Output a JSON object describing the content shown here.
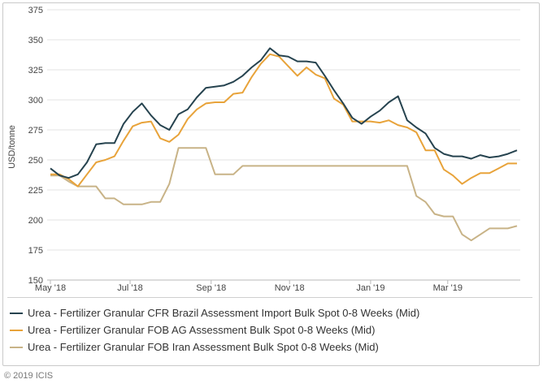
{
  "chart_data": {
    "type": "line",
    "ylabel": "USD/tonne",
    "ylim": [
      150,
      375
    ],
    "yticks": [
      150,
      175,
      200,
      225,
      250,
      275,
      300,
      325,
      350,
      375
    ],
    "xlabels": [
      {
        "label": "May '18",
        "x": 0
      },
      {
        "label": "Jul '18",
        "x": 8.71
      },
      {
        "label": "Sep '18",
        "x": 17.57
      },
      {
        "label": "Nov '18",
        "x": 26.14
      },
      {
        "label": "Jan '19",
        "x": 35
      },
      {
        "label": "Mar '19",
        "x": 43.43
      }
    ],
    "grid": "horizontal",
    "legend_position": "bottom",
    "series": [
      {
        "name": "Urea - Fertilizer Granular CFR Brazil Assessment Import Bulk Spot 0-8 Weeks (Mid)",
        "color": "#26434f",
        "values": [
          243,
          237,
          235,
          238,
          248,
          263,
          264,
          264,
          280,
          290,
          297,
          287,
          279,
          275,
          288,
          292,
          302,
          310,
          311,
          312,
          315,
          320,
          327,
          333,
          343,
          337,
          336,
          332,
          332,
          331,
          320,
          308,
          297,
          285,
          280,
          286,
          291,
          298,
          303,
          283,
          277,
          272,
          260,
          255,
          253,
          253,
          251,
          254,
          252,
          253,
          255,
          258
        ]
      },
      {
        "name": "Urea - Fertilizer Granular FOB AG Assessment Bulk Spot 0-8 Weeks (Mid)",
        "color": "#e8a33a",
        "values": [
          238,
          238,
          234,
          228,
          238,
          248,
          250,
          253,
          266,
          278,
          281,
          282,
          268,
          265,
          271,
          284,
          292,
          297,
          298,
          298,
          305,
          306,
          319,
          330,
          338,
          336,
          328,
          320,
          327,
          321,
          318,
          301,
          296,
          282,
          282,
          282,
          281,
          283,
          279,
          277,
          273,
          258,
          258,
          242,
          237,
          230,
          235,
          239,
          239,
          243,
          247,
          247
        ]
      },
      {
        "name": "Urea - Fertilizer Granular FOB Iran Assessment Bulk Spot 0-8 Weeks (Mid)",
        "color": "#c8b387",
        "values": [
          237,
          237,
          232,
          228,
          228,
          228,
          218,
          218,
          213,
          213,
          213,
          215,
          215,
          230,
          260,
          260,
          260,
          260,
          238,
          238,
          238,
          245,
          245,
          245,
          245,
          245,
          245,
          245,
          245,
          245,
          245,
          245,
          245,
          245,
          245,
          245,
          245,
          245,
          245,
          245,
          220,
          215,
          205,
          203,
          203,
          188,
          183,
          188,
          193,
          193,
          193,
          195
        ]
      }
    ]
  },
  "copyright": "© 2019 ICIS"
}
